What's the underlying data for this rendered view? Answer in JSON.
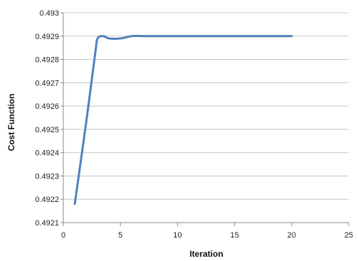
{
  "chart_data": {
    "type": "line",
    "title": "",
    "xlabel": "Iteration",
    "ylabel": "Cost Function",
    "xlim": [
      0,
      25
    ],
    "ylim": [
      0.4921,
      0.493
    ],
    "x_ticks": [
      "0",
      "5",
      "10",
      "15",
      "20",
      "25"
    ],
    "y_ticks": [
      "0.4921",
      "0.4922",
      "0.4923",
      "0.4924",
      "0.4925",
      "0.4926",
      "0.4927",
      "0.4928",
      "0.4929",
      "0.493"
    ],
    "grid": "horizontal",
    "legend": "none",
    "series": [
      {
        "color": "#4f81bd",
        "x": [
          1,
          2,
          2.8,
          3,
          3.5,
          4,
          5,
          6,
          7,
          8,
          9,
          10,
          11,
          12,
          13,
          14,
          15,
          16,
          17,
          18,
          19,
          20
        ],
        "values": [
          0.49218,
          0.49253,
          0.49283,
          0.49289,
          0.4929,
          0.49289,
          0.49289,
          0.4929,
          0.4929,
          0.4929,
          0.4929,
          0.4929,
          0.4929,
          0.4929,
          0.4929,
          0.4929,
          0.4929,
          0.4929,
          0.4929,
          0.4929,
          0.4929,
          0.4929
        ]
      }
    ]
  }
}
